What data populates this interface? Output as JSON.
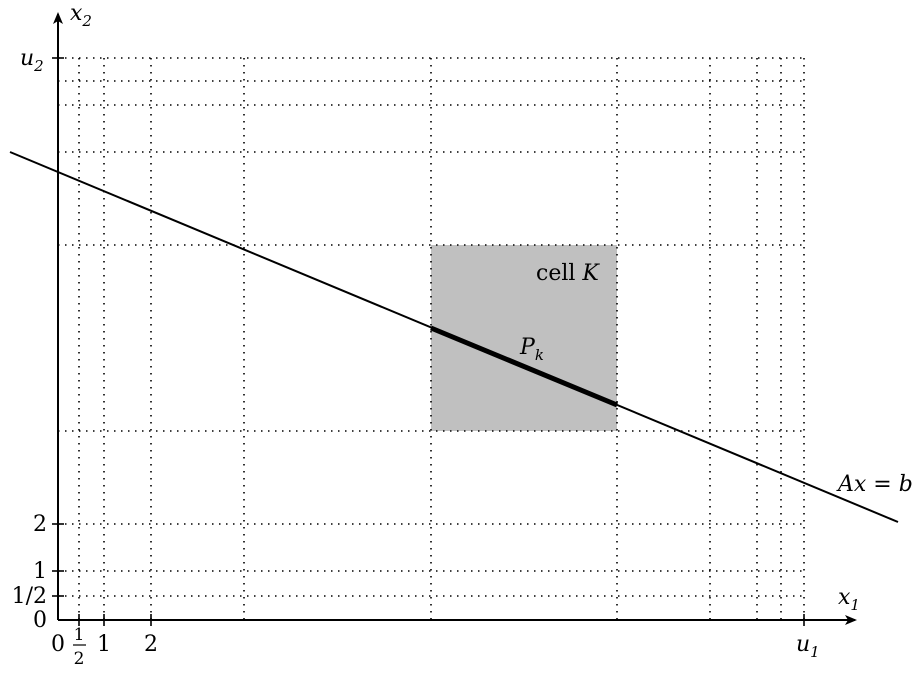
{
  "axes": {
    "x_label": "x",
    "x_label_sub": "1",
    "y_label": "x",
    "y_label_sub": "2",
    "x_end": "u",
    "x_end_sub": "1",
    "y_end": "u",
    "y_end_sub": "2"
  },
  "x_ticks": {
    "zero": "0",
    "half_num": "1",
    "half_den": "2",
    "one": "1",
    "two": "2"
  },
  "y_ticks": {
    "zero": "0",
    "half": "1/2",
    "one": "1",
    "two": "2"
  },
  "cell_label": "cell",
  "cell_var": "K",
  "polytope_label": "P",
  "polytope_sub": "k",
  "line_label_lhs": "Ax",
  "line_label_eq": "=",
  "line_label_rhs": "b",
  "colors": {
    "cell_fill": "#c0c0c0",
    "ink": "#000000"
  }
}
